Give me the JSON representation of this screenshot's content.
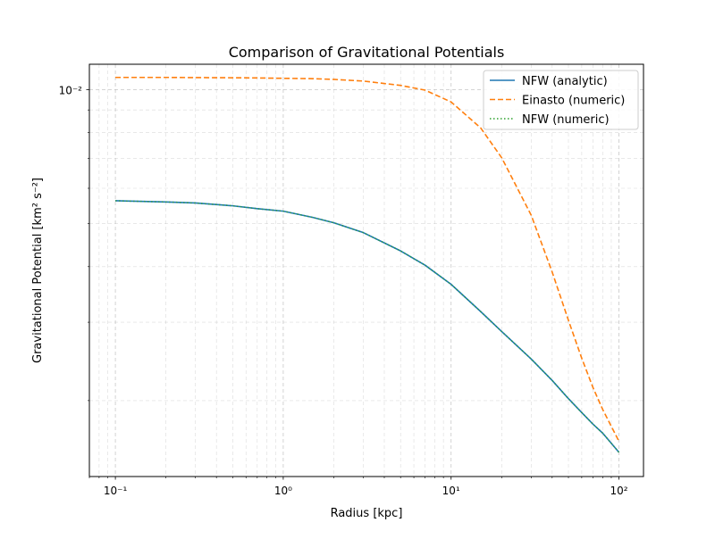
{
  "chart_data": {
    "type": "line",
    "title": "Comparison of Gravitational Potentials",
    "xlabel": "Radius [kpc]",
    "ylabel": "Gravitational Potential [km² s⁻²]",
    "x_scale": "log",
    "y_scale": "log",
    "xlim": [
      0.07,
      140
    ],
    "ylim": [
      0.00135,
      0.0114
    ],
    "grid": "both",
    "grid_style": "dashed",
    "legend_position": "top-right",
    "x_ticks": [
      {
        "value": 0.1,
        "label": "10⁻¹"
      },
      {
        "value": 1,
        "label": "10⁰"
      },
      {
        "value": 10,
        "label": "10¹"
      },
      {
        "value": 100,
        "label": "10²"
      }
    ],
    "y_ticks": [
      {
        "value": 0.01,
        "label": "10⁻²"
      }
    ],
    "x": [
      0.1,
      0.2,
      0.3,
      0.5,
      0.7,
      1,
      1.5,
      2,
      3,
      5,
      7,
      10,
      15,
      20,
      30,
      40,
      50,
      60,
      70,
      80,
      100
    ],
    "series": [
      {
        "name": "NFW (analytic)",
        "color": "#1f77b4",
        "style": "solid",
        "values": [
          0.005625,
          0.00559,
          0.00556,
          0.00548,
          0.0054,
          0.00533,
          0.00516,
          0.00502,
          0.00477,
          0.00434,
          0.00403,
          0.00365,
          0.00317,
          0.00286,
          0.00248,
          0.00222,
          0.00202,
          0.00188,
          0.00177,
          0.00169,
          0.00153
        ]
      },
      {
        "name": "Einasto (numeric)",
        "color": "#ff7f0e",
        "style": "dashed",
        "values": [
          0.01065,
          0.01065,
          0.01064,
          0.01063,
          0.01062,
          0.0106,
          0.01058,
          0.01054,
          0.01045,
          0.01022,
          0.00997,
          0.00938,
          0.0082,
          0.00703,
          0.00522,
          0.00389,
          0.00303,
          0.00249,
          0.00214,
          0.00191,
          0.00162
        ]
      },
      {
        "name": "NFW (numeric)",
        "color": "#2ca02c",
        "style": "dotted",
        "values": [
          0.005625,
          0.00559,
          0.00556,
          0.00548,
          0.0054,
          0.00533,
          0.00516,
          0.00502,
          0.00477,
          0.00434,
          0.00403,
          0.00365,
          0.00317,
          0.00286,
          0.00248,
          0.00222,
          0.00202,
          0.00188,
          0.00177,
          0.00169,
          0.00153
        ]
      }
    ]
  }
}
